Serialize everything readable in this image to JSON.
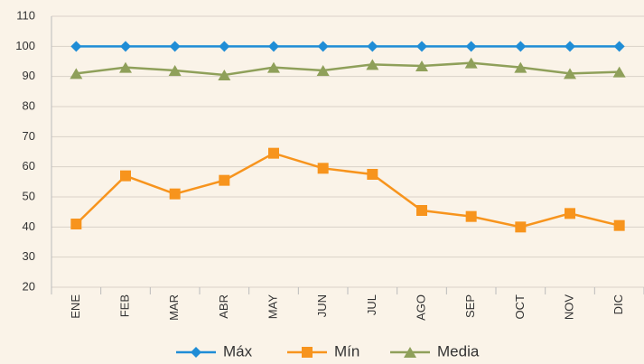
{
  "chart_data": {
    "type": "line",
    "categories": [
      "ENE",
      "FEB",
      "MAR",
      "ABR",
      "MAY",
      "JUN",
      "JUL",
      "AGO",
      "SEP",
      "OCT",
      "NOV",
      "DIC"
    ],
    "series": [
      {
        "name": "Máx",
        "color": "#1f8dd6",
        "marker": "diamond",
        "values": [
          100,
          100,
          100,
          100,
          100,
          100,
          100,
          100,
          100,
          100,
          100,
          100
        ]
      },
      {
        "name": "Mín",
        "color": "#f7941d",
        "marker": "square",
        "values": [
          41,
          57,
          51,
          55.5,
          64.5,
          59.5,
          57.5,
          45.5,
          43.5,
          40,
          44.5,
          40.5
        ]
      },
      {
        "name": "Media",
        "color": "#8fa05a",
        "marker": "triangle",
        "values": [
          91,
          93,
          92,
          90.5,
          93,
          92,
          94,
          93.5,
          94.5,
          93,
          91,
          91.5
        ]
      }
    ],
    "ylim": [
      20,
      110
    ],
    "yticks": [
      20,
      30,
      40,
      50,
      60,
      70,
      80,
      90,
      100,
      110
    ],
    "grid": true,
    "legend": "bottom"
  }
}
